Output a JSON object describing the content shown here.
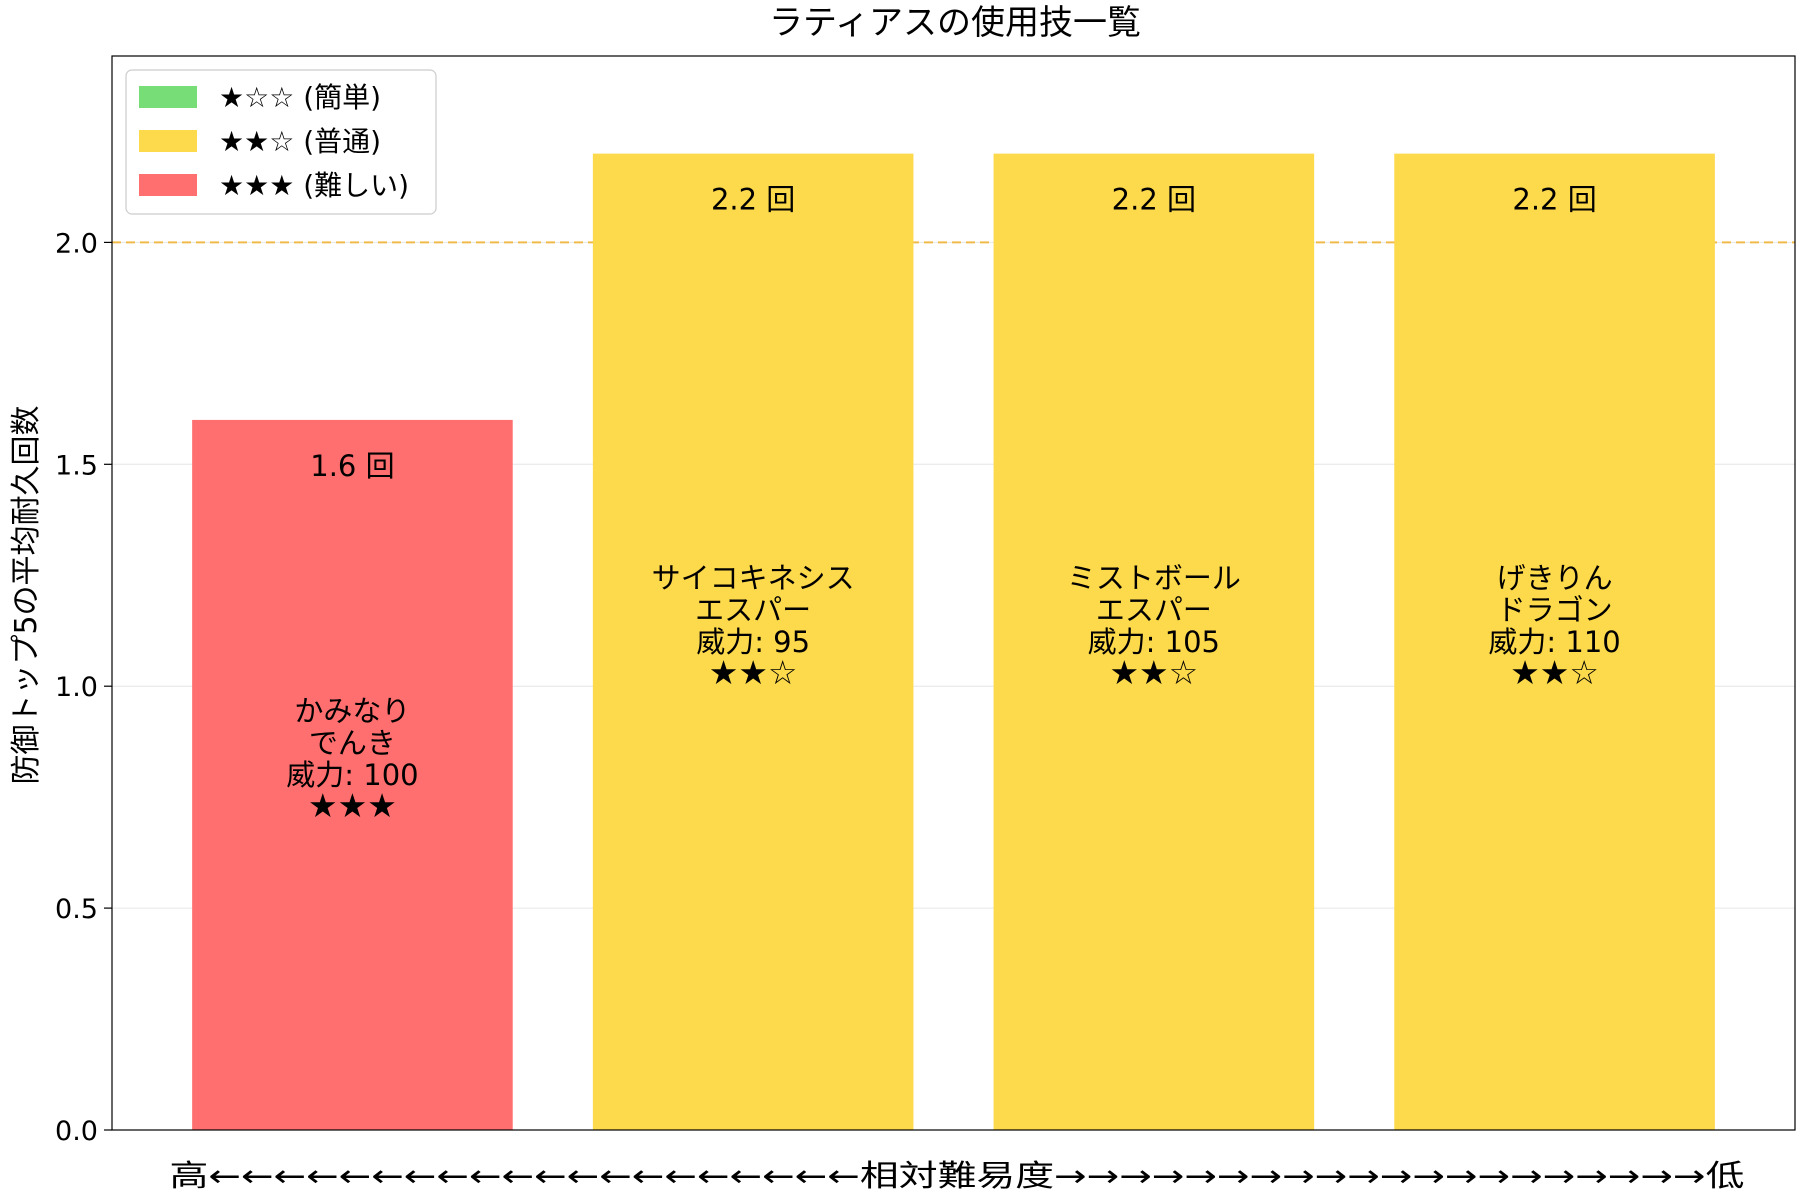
{
  "chart_data": {
    "type": "bar",
    "title": "ラティアスの使用技一覧",
    "xlabel": "高←←←←←←←←←←←←←←←←←←←←相対難易度→→→→→→→→→→→→→→→→→→→→低",
    "ylabel": "防御トップ5の平均耐久回数",
    "ylim": [
      0,
      2.42
    ],
    "yticks": [
      "0.0",
      "0.5",
      "1.0",
      "1.5",
      "2.0"
    ],
    "grid": "horizontal",
    "legend_position": "top-left",
    "reference_line": {
      "value": 2.0,
      "color": "#f2b230",
      "style": "dashed"
    },
    "legend": [
      {
        "label": "★☆☆ (簡単)",
        "color": "#77dd77"
      },
      {
        "label": "★★☆ (普通)",
        "color": "#fdd94c"
      },
      {
        "label": "★★★ (難しい)",
        "color": "#ff6f6f"
      }
    ],
    "bars": [
      {
        "value": 1.6,
        "value_label": "1.6 回",
        "color": "#ff6f6f",
        "lines": [
          "かみなり",
          "でんき",
          "威力: 100",
          "★★★"
        ]
      },
      {
        "value": 2.2,
        "value_label": "2.2 回",
        "color": "#fdd94c",
        "lines": [
          "サイコキネシス",
          "エスパー",
          "威力: 95",
          "★★☆"
        ]
      },
      {
        "value": 2.2,
        "value_label": "2.2 回",
        "color": "#fdd94c",
        "lines": [
          "ミストボール",
          "エスパー",
          "威力: 105",
          "★★☆"
        ]
      },
      {
        "value": 2.2,
        "value_label": "2.2 回",
        "color": "#fdd94c",
        "lines": [
          "げきりん",
          "ドラゴン",
          "威力: 110",
          "★★☆"
        ]
      }
    ]
  }
}
